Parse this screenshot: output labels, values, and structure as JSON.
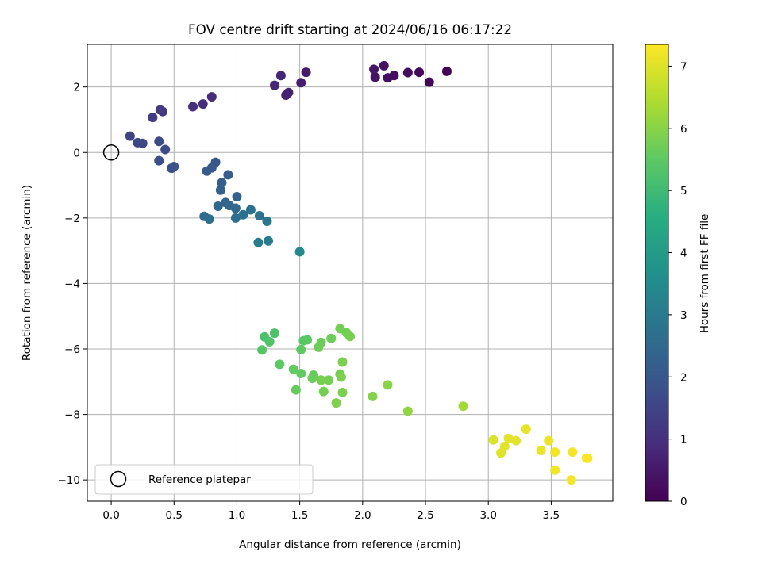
{
  "chart_data": {
    "type": "scatter",
    "title": "FOV centre drift starting at 2024/06/16 06:17:22",
    "xlabel": "Angular distance from reference (arcmin)",
    "ylabel": "Rotation from reference (arcmin)",
    "xlim": [
      -0.19,
      3.99
    ],
    "ylim": [
      -10.65,
      3.3
    ],
    "x_ticks": [
      0.0,
      0.5,
      1.0,
      1.5,
      2.0,
      2.5,
      3.0,
      3.5
    ],
    "x_tick_labels": [
      "0.0",
      "0.5",
      "1.0",
      "1.5",
      "2.0",
      "2.5",
      "3.0",
      "3.5"
    ],
    "y_ticks": [
      2,
      0,
      -2,
      -4,
      -6,
      -8,
      -10
    ],
    "y_tick_labels": [
      "2",
      "0",
      "−2",
      "−4",
      "−6",
      "−8",
      "−10"
    ],
    "grid": true,
    "colormap": "viridis",
    "colorbar": {
      "label": "Hours from first FF file",
      "range": [
        0,
        7.35
      ],
      "ticks": [
        0,
        1,
        2,
        3,
        4,
        5,
        6,
        7
      ],
      "tick_labels": [
        "0",
        "1",
        "2",
        "3",
        "4",
        "5",
        "6",
        "7"
      ]
    },
    "legend": {
      "position": "lower-left",
      "label": "Reference platepar"
    },
    "reference_point": {
      "x": 0.0,
      "y": 0.0
    },
    "series": [
      {
        "points": [
          [
            2.67,
            2.48,
            0.05
          ],
          [
            2.53,
            2.15,
            0.1
          ],
          [
            2.45,
            2.45,
            0.15
          ],
          [
            2.36,
            2.44,
            0.2
          ],
          [
            2.25,
            2.35,
            0.25
          ],
          [
            2.2,
            2.28,
            0.3
          ],
          [
            2.17,
            2.65,
            0.35
          ],
          [
            2.1,
            2.3,
            0.4
          ],
          [
            2.09,
            2.54,
            0.45
          ],
          [
            1.55,
            2.45,
            0.55
          ],
          [
            1.51,
            2.13,
            0.6
          ],
          [
            1.41,
            1.83,
            0.65
          ],
          [
            1.39,
            1.75,
            0.7
          ],
          [
            1.35,
            2.35,
            0.75
          ],
          [
            1.3,
            2.05,
            0.8
          ],
          [
            0.8,
            1.7,
            0.9
          ],
          [
            0.73,
            1.48,
            0.95
          ],
          [
            0.65,
            1.4,
            1.0
          ],
          [
            0.41,
            1.25,
            1.2
          ],
          [
            0.39,
            1.3,
            1.25
          ],
          [
            0.33,
            1.07,
            1.3
          ],
          [
            0.15,
            0.5,
            1.5
          ],
          [
            0.21,
            0.3,
            1.55
          ],
          [
            0.25,
            0.28,
            1.6
          ],
          [
            0.38,
            0.34,
            1.65
          ],
          [
            0.43,
            0.09,
            1.7
          ],
          [
            0.38,
            -0.25,
            1.75
          ],
          [
            0.48,
            -0.48,
            1.8
          ],
          [
            0.5,
            -0.43,
            1.85
          ],
          [
            0.83,
            -0.3,
            2.0
          ],
          [
            0.8,
            -0.47,
            2.05
          ],
          [
            0.76,
            -0.57,
            2.1
          ],
          [
            0.93,
            -0.68,
            2.15
          ],
          [
            0.88,
            -0.92,
            2.2
          ],
          [
            0.87,
            -1.15,
            2.25
          ],
          [
            1.0,
            -1.35,
            2.3
          ],
          [
            0.91,
            -1.53,
            2.35
          ],
          [
            0.94,
            -1.62,
            2.4
          ],
          [
            0.85,
            -1.64,
            2.45
          ],
          [
            0.99,
            -1.7,
            2.5
          ],
          [
            0.74,
            -1.95,
            2.55
          ],
          [
            0.78,
            -2.03,
            2.6
          ],
          [
            0.99,
            -2.0,
            2.65
          ],
          [
            1.05,
            -1.9,
            2.7
          ],
          [
            1.11,
            -1.75,
            2.75
          ],
          [
            1.18,
            -1.93,
            2.8
          ],
          [
            1.24,
            -2.1,
            2.9
          ],
          [
            1.25,
            -2.7,
            3.0
          ],
          [
            1.17,
            -2.75,
            3.05
          ],
          [
            1.5,
            -3.03,
            3.45
          ],
          [
            1.22,
            -5.63,
            5.2
          ],
          [
            1.3,
            -5.52,
            5.25
          ],
          [
            1.26,
            -5.78,
            5.3
          ],
          [
            1.2,
            -6.03,
            5.35
          ],
          [
            1.53,
            -5.75,
            5.4
          ],
          [
            1.56,
            -5.72,
            5.45
          ],
          [
            1.51,
            -6.02,
            5.5
          ],
          [
            1.34,
            -6.47,
            5.5
          ],
          [
            1.45,
            -6.62,
            5.55
          ],
          [
            1.51,
            -6.75,
            5.55
          ],
          [
            1.47,
            -7.25,
            5.6
          ],
          [
            1.61,
            -6.8,
            5.6
          ],
          [
            1.6,
            -6.9,
            5.65
          ],
          [
            1.67,
            -5.8,
            5.65
          ],
          [
            1.65,
            -5.95,
            5.7
          ],
          [
            1.75,
            -5.68,
            5.7
          ],
          [
            1.82,
            -5.38,
            5.75
          ],
          [
            1.87,
            -5.5,
            5.75
          ],
          [
            1.9,
            -5.62,
            5.8
          ],
          [
            1.67,
            -6.95,
            5.8
          ],
          [
            1.69,
            -7.3,
            5.8
          ],
          [
            1.73,
            -6.95,
            5.8
          ],
          [
            1.82,
            -6.77,
            5.8
          ],
          [
            1.83,
            -6.86,
            5.85
          ],
          [
            1.84,
            -6.4,
            5.85
          ],
          [
            1.84,
            -7.33,
            5.85
          ],
          [
            1.79,
            -7.65,
            5.9
          ],
          [
            2.08,
            -7.45,
            5.95
          ],
          [
            2.2,
            -7.1,
            6.0
          ],
          [
            2.36,
            -7.9,
            6.1
          ],
          [
            2.8,
            -7.75,
            6.3
          ],
          [
            3.04,
            -8.78,
            6.95
          ],
          [
            3.1,
            -9.18,
            7.0
          ],
          [
            3.13,
            -8.98,
            7.0
          ],
          [
            3.16,
            -8.73,
            7.05
          ],
          [
            3.22,
            -8.8,
            7.05
          ],
          [
            3.3,
            -8.45,
            7.1
          ],
          [
            3.42,
            -9.1,
            7.15
          ],
          [
            3.48,
            -8.8,
            7.15
          ],
          [
            3.53,
            -9.15,
            7.2
          ],
          [
            3.53,
            -9.7,
            7.2
          ],
          [
            3.67,
            -9.15,
            7.25
          ],
          [
            3.66,
            -10.0,
            7.25
          ],
          [
            3.78,
            -9.33,
            7.3
          ],
          [
            3.79,
            -9.34,
            7.3
          ]
        ]
      }
    ]
  }
}
